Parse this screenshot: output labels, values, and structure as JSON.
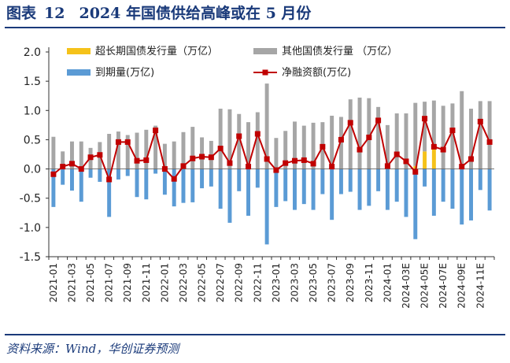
{
  "figure": {
    "label": "图表",
    "number": "12",
    "title": "2024 年国债供给高峰或在 5 月份",
    "source": "资料来源：Wind，华创证券预测"
  },
  "chart_data": {
    "type": "bar",
    "stacked": true,
    "categories": [
      "2021-01",
      "2021-02",
      "2021-03",
      "2021-04",
      "2021-05",
      "2021-06",
      "2021-07",
      "2021-08",
      "2021-09",
      "2021-10",
      "2021-11",
      "2021-12",
      "2022-01",
      "2022-02",
      "2022-03",
      "2022-04",
      "2022-05",
      "2022-06",
      "2022-07",
      "2022-08",
      "2022-09",
      "2022-10",
      "2022-11",
      "2022-12",
      "2023-01",
      "2023-02",
      "2023-03",
      "2023-04",
      "2023-05",
      "2023-06",
      "2023-07",
      "2023-08",
      "2023-09",
      "2023-10",
      "2023-11",
      "2023-12",
      "2024-01",
      "2024-02",
      "2024-03E",
      "2024-04E",
      "2024-05E",
      "2024-06E",
      "2024-07E",
      "2024-08E",
      "2024-09E",
      "2024-10E",
      "2024-11E",
      "2024-12E"
    ],
    "x_tick_labels": [
      "2021-01",
      "2021-03",
      "2021-05",
      "2021-07",
      "2021-09",
      "2021-11",
      "2022-01",
      "2022-03",
      "2022-05",
      "2022-07",
      "2022-09",
      "2022-11",
      "2023-01",
      "2023-03",
      "2023-05",
      "2023-07",
      "2023-09",
      "2023-11",
      "2024-01",
      "2024-03E",
      "2024-05E",
      "2024-07E",
      "2024-09E",
      "2024-11E"
    ],
    "y_tick_labels": [
      "2.0",
      "1.5",
      "1.0",
      "0.5",
      "0.0",
      "-0.5",
      "-1.0",
      "-1.5"
    ],
    "ylim": [
      -1.5,
      2.0
    ],
    "y_ticks": [
      2.0,
      1.5,
      1.0,
      0.5,
      0.0,
      -0.5,
      -1.0,
      -1.5
    ],
    "grid": false,
    "legend": {
      "placement": "top",
      "columns": 2
    },
    "series": [
      {
        "name": "超长期国债发行量（万亿）",
        "type": "bar",
        "color": "#f5c21a",
        "values": [
          0,
          0,
          0,
          0,
          0,
          0,
          0,
          0,
          0,
          0,
          0,
          0,
          0,
          0,
          0,
          0,
          0,
          0,
          0,
          0,
          0,
          0,
          0,
          0,
          0,
          0,
          0,
          0,
          0,
          0,
          0,
          0,
          0,
          0,
          0,
          0,
          0,
          0,
          0,
          0.05,
          0.3,
          0.35,
          0,
          0,
          0,
          0,
          0,
          0
        ]
      },
      {
        "name": "其他国债发行量 （万亿）",
        "type": "bar",
        "color": "#a6a6a6",
        "values": [
          0.55,
          0.3,
          0.47,
          0.47,
          0.36,
          0.46,
          0.6,
          0.64,
          0.58,
          0.62,
          0.67,
          0.74,
          0.43,
          0.47,
          0.63,
          0.72,
          0.54,
          0.48,
          1.03,
          1.02,
          0.94,
          0.8,
          0.97,
          1.46,
          0.53,
          0.65,
          0.81,
          0.74,
          0.79,
          0.8,
          0.91,
          0.89,
          1.19,
          1.22,
          1.21,
          1.06,
          0.75,
          0.95,
          0.95,
          1.08,
          0.85,
          0.82,
          1.08,
          1.12,
          1.33,
          1.03,
          1.16,
          1.16
        ]
      },
      {
        "name": "到期量(万亿)",
        "type": "bar",
        "color": "#5b9bd5",
        "values": [
          -0.65,
          -0.27,
          -0.37,
          -0.56,
          -0.15,
          -0.22,
          -0.82,
          -0.18,
          -0.12,
          -0.48,
          -0.52,
          -0.08,
          -0.44,
          -0.64,
          -0.58,
          -0.57,
          -0.33,
          -0.3,
          -0.68,
          -0.92,
          -0.38,
          -0.8,
          -0.32,
          -1.29,
          -0.65,
          -0.55,
          -0.7,
          -0.6,
          -0.7,
          -0.43,
          -0.87,
          -0.43,
          -0.39,
          -0.7,
          -0.63,
          -0.38,
          -0.7,
          -0.56,
          -0.82,
          -1.2,
          -0.3,
          -0.8,
          -0.56,
          -0.68,
          -0.95,
          -0.88,
          -0.36,
          -0.71
        ]
      },
      {
        "name": "净融资额(万亿)",
        "type": "line",
        "color": "#c00000",
        "values": [
          -0.09,
          0.04,
          0.09,
          0.0,
          0.2,
          0.24,
          -0.18,
          0.46,
          0.46,
          0.14,
          0.15,
          0.66,
          0.0,
          -0.17,
          0.05,
          0.18,
          0.21,
          0.2,
          0.35,
          0.1,
          0.56,
          0.04,
          0.6,
          0.17,
          -0.02,
          0.1,
          0.14,
          0.15,
          0.09,
          0.38,
          0.04,
          0.5,
          0.79,
          0.33,
          0.54,
          0.83,
          0.05,
          0.25,
          0.13,
          -0.05,
          0.86,
          0.38,
          0.33,
          0.66,
          0.04,
          0.17,
          0.81,
          0.46
        ]
      }
    ]
  },
  "colors": {
    "brand": "#1a3a7a",
    "axis": "#333333"
  }
}
